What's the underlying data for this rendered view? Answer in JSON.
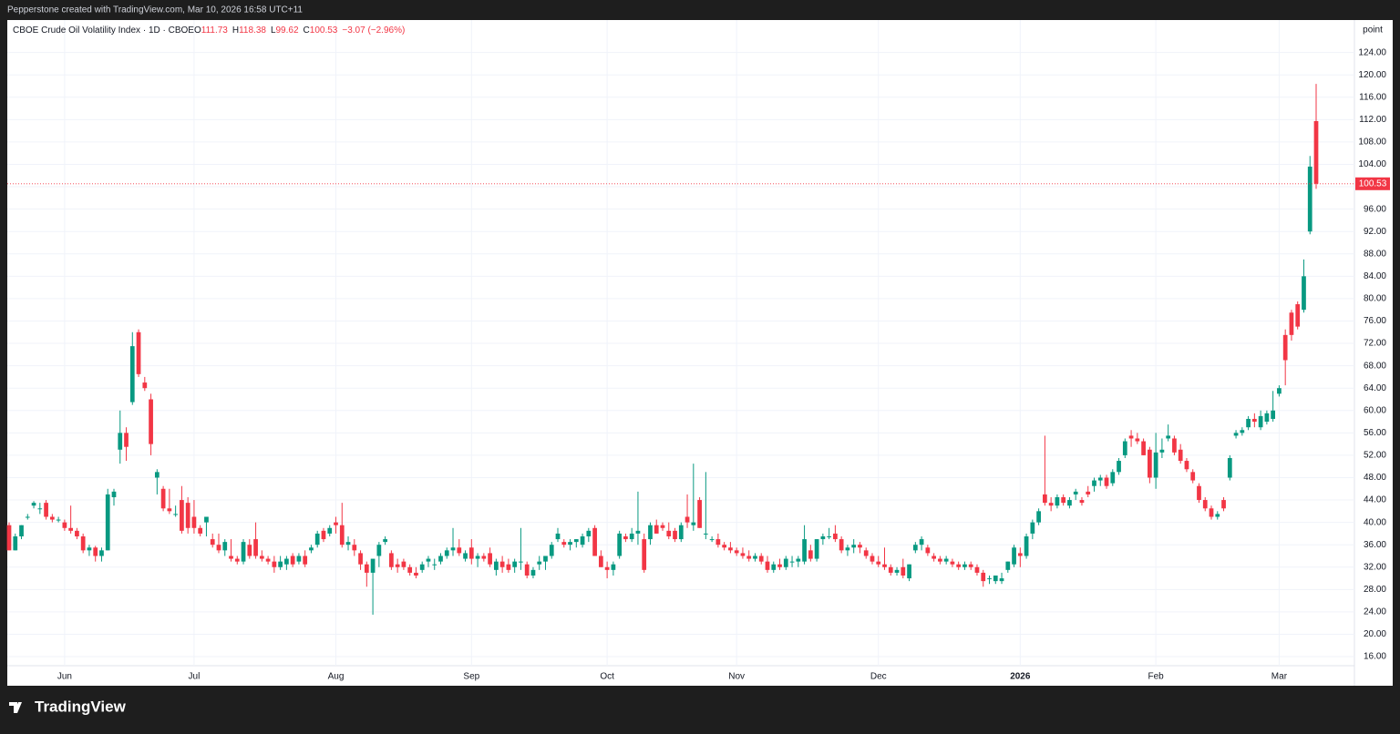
{
  "header": {
    "credit": "Pepperstone created with TradingView.com, Mar 10, 2026 16:58 UTC+11",
    "logo": "TradingView"
  },
  "chart_data": {
    "type": "candlestick",
    "title": "CBOE Crude Oil Volatility Index · 1D · CBOE",
    "ohlc_letters": [
      "O",
      "H",
      "L",
      "C"
    ],
    "change_label": "−3.07 (−2.96%)",
    "unit": "point",
    "up_color": "#089981",
    "down_color": "#f23645",
    "grid": true,
    "ylim": [
      10.8,
      129.8
    ],
    "yticks": [
      {
        "value": 16,
        "label": "16.00"
      },
      {
        "value": 20,
        "label": "20.00"
      },
      {
        "value": 24,
        "label": "24.00"
      },
      {
        "value": 28,
        "label": "28.00"
      },
      {
        "value": 32,
        "label": "32.00"
      },
      {
        "value": 36,
        "label": "36.00"
      },
      {
        "value": 40,
        "label": "40.00"
      },
      {
        "value": 44,
        "label": "44.00"
      },
      {
        "value": 48,
        "label": "48.00"
      },
      {
        "value": 52,
        "label": "52.00"
      },
      {
        "value": 56,
        "label": "56.00"
      },
      {
        "value": 60,
        "label": "60.00"
      },
      {
        "value": 64,
        "label": "64.00"
      },
      {
        "value": 68,
        "label": "68.00"
      },
      {
        "value": 72,
        "label": "72.00"
      },
      {
        "value": 76,
        "label": "76.00"
      },
      {
        "value": 80,
        "label": "80.00"
      },
      {
        "value": 84,
        "label": "84.00"
      },
      {
        "value": 88,
        "label": "88.00"
      },
      {
        "value": 92,
        "label": "92.00"
      },
      {
        "value": 96,
        "label": "96.00"
      },
      {
        "value": 100,
        "label": "100.00"
      },
      {
        "value": 104,
        "label": "104.00"
      },
      {
        "value": 108,
        "label": "108.00"
      },
      {
        "value": 112,
        "label": "112.00"
      },
      {
        "value": 116,
        "label": "116.00"
      },
      {
        "value": 120,
        "label": "120.00"
      },
      {
        "value": 124,
        "label": "124.00"
      }
    ],
    "categories": [
      null,
      null,
      null,
      null,
      null,
      null,
      null,
      null,
      null,
      "Jun",
      null,
      null,
      null,
      null,
      null,
      null,
      null,
      null,
      null,
      null,
      null,
      null,
      null,
      null,
      null,
      null,
      null,
      null,
      null,
      null,
      "Jul",
      null,
      null,
      null,
      null,
      null,
      null,
      null,
      null,
      null,
      null,
      null,
      null,
      null,
      null,
      null,
      null,
      null,
      null,
      null,
      null,
      null,
      null,
      "Aug",
      null,
      null,
      null,
      null,
      null,
      null,
      null,
      null,
      null,
      null,
      null,
      null,
      null,
      null,
      null,
      null,
      null,
      null,
      null,
      null,
      null,
      "Sep",
      null,
      null,
      null,
      null,
      null,
      null,
      null,
      null,
      null,
      null,
      null,
      null,
      null,
      null,
      null,
      null,
      null,
      null,
      null,
      null,
      null,
      "Oct",
      null,
      null,
      null,
      null,
      null,
      null,
      null,
      null,
      null,
      null,
      null,
      null,
      null,
      null,
      null,
      null,
      null,
      null,
      null,
      null,
      "Nov",
      null,
      null,
      null,
      null,
      null,
      null,
      null,
      null,
      null,
      null,
      null,
      null,
      null,
      null,
      null,
      null,
      null,
      null,
      null,
      null,
      null,
      null,
      "Dec",
      null,
      null,
      null,
      null,
      null,
      null,
      null,
      null,
      null,
      null,
      null,
      null,
      null,
      null,
      null,
      null,
      null,
      null,
      null,
      null,
      null,
      null,
      "2026",
      null,
      null,
      null,
      null,
      null,
      null,
      null,
      null,
      null,
      null,
      null,
      null,
      null,
      null,
      null,
      null,
      null,
      null,
      null,
      null,
      null,
      "Feb",
      null,
      null,
      null,
      null,
      null,
      null,
      null,
      null,
      null,
      null,
      null,
      null,
      null,
      null,
      null,
      null,
      null,
      null,
      null,
      "Mar",
      null,
      null,
      null,
      null,
      null,
      null
    ],
    "candles": [
      [
        39.5,
        40,
        35,
        35
      ],
      [
        35,
        38,
        35,
        37.5
      ],
      [
        37.5,
        39.5,
        37,
        39.5
      ],
      [
        41,
        41.5,
        40.5,
        41
      ],
      [
        43,
        43.8,
        42.5,
        43.5
      ],
      [
        42.5,
        43.5,
        41.5,
        42.5
      ],
      [
        43.5,
        44,
        40.5,
        41
      ],
      [
        41,
        41.5,
        40,
        40.5
      ],
      [
        40.5,
        41,
        40,
        40.5
      ],
      [
        40,
        40.5,
        38.5,
        39
      ],
      [
        39,
        43,
        38,
        38.5
      ],
      [
        38.5,
        39,
        37,
        37.5
      ],
      [
        37.5,
        38,
        34.5,
        35
      ],
      [
        35,
        36,
        34,
        35.5
      ],
      [
        35.5,
        35.8,
        33,
        34
      ],
      [
        34,
        35.5,
        33,
        35
      ],
      [
        35,
        46,
        35,
        45
      ],
      [
        44.5,
        46,
        43,
        45.5
      ],
      [
        53,
        60,
        50.5,
        56
      ],
      [
        56,
        57,
        51,
        53.5
      ],
      [
        61.5,
        74,
        61,
        71.5
      ],
      [
        74,
        74.5,
        66,
        66.5
      ],
      [
        65,
        66,
        63.5,
        64
      ],
      [
        62,
        63,
        52,
        54
      ],
      [
        48,
        49.5,
        45,
        49
      ],
      [
        46,
        46.5,
        42,
        42.5
      ],
      [
        42.5,
        46,
        41.5,
        42
      ],
      [
        41.5,
        43,
        41,
        41.5
      ],
      [
        44,
        46.5,
        38,
        38.5
      ],
      [
        43.5,
        44.5,
        38,
        39
      ],
      [
        41,
        44,
        38,
        39
      ],
      [
        39,
        39.5,
        37.5,
        38
      ],
      [
        40,
        41,
        37.5,
        41
      ],
      [
        37,
        38,
        35.5,
        36
      ],
      [
        36,
        38,
        34.5,
        35
      ],
      [
        35,
        37,
        34,
        36.5
      ],
      [
        34,
        37,
        33,
        33.5
      ],
      [
        33.5,
        34,
        32.5,
        33
      ],
      [
        33,
        37,
        32.5,
        36.5
      ],
      [
        36,
        37,
        33.5,
        34
      ],
      [
        37,
        40,
        33.5,
        34
      ],
      [
        34,
        35,
        33,
        33.5
      ],
      [
        33.5,
        34,
        32.5,
        33
      ],
      [
        33,
        34,
        31,
        32
      ],
      [
        32,
        34,
        31.5,
        33
      ],
      [
        32.5,
        34,
        31.5,
        33.5
      ],
      [
        34,
        34.5,
        32,
        32.5
      ],
      [
        33,
        34.5,
        32.5,
        34
      ],
      [
        34,
        35,
        32,
        32.5
      ],
      [
        35,
        36,
        34.5,
        35.5
      ],
      [
        36,
        38.5,
        35.5,
        38
      ],
      [
        38.5,
        39,
        36.5,
        37
      ],
      [
        38,
        39.5,
        37.5,
        39
      ],
      [
        40,
        41,
        38,
        39.5
      ],
      [
        39.5,
        43.5,
        35.5,
        36
      ],
      [
        36,
        37.5,
        35,
        36.5
      ],
      [
        36,
        37,
        34,
        35
      ],
      [
        34.5,
        35,
        31.5,
        32.5
      ],
      [
        32.5,
        33,
        28.5,
        31
      ],
      [
        31,
        33,
        23.5,
        33.5
      ],
      [
        34,
        36.5,
        32,
        36
      ],
      [
        36.5,
        37.5,
        36,
        37
      ],
      [
        34.5,
        35,
        31.5,
        32
      ],
      [
        32.5,
        33.5,
        31,
        32
      ],
      [
        33,
        33.5,
        31.5,
        32
      ],
      [
        32,
        32.5,
        30.5,
        31
      ],
      [
        31,
        32,
        30,
        30.5
      ],
      [
        31.5,
        33,
        31,
        32.5
      ],
      [
        33,
        34,
        32,
        33.5
      ],
      [
        32.5,
        33.5,
        31.5,
        32.5
      ],
      [
        33,
        34.5,
        32.5,
        34
      ],
      [
        34,
        35.5,
        33.5,
        35
      ],
      [
        35,
        39,
        34,
        35.5
      ],
      [
        35.5,
        37,
        34,
        34.5
      ],
      [
        33.5,
        35,
        33,
        34.5
      ],
      [
        35.5,
        37,
        32.5,
        33.5
      ],
      [
        33.5,
        34.5,
        32,
        34
      ],
      [
        34,
        34.5,
        33,
        33.5
      ],
      [
        34.5,
        35.5,
        32,
        32.5
      ],
      [
        31.5,
        33.5,
        30.5,
        33
      ],
      [
        33,
        34,
        31,
        32
      ],
      [
        32.5,
        33.5,
        31,
        31.5
      ],
      [
        32,
        33.5,
        31,
        33
      ],
      [
        33,
        39,
        31.5,
        33
      ],
      [
        32.5,
        33,
        30,
        30.5
      ],
      [
        30.5,
        32,
        30,
        31.5
      ],
      [
        32.5,
        34,
        31.5,
        33
      ],
      [
        33,
        34,
        31.5,
        34
      ],
      [
        34,
        36.5,
        33.5,
        36
      ],
      [
        37,
        39,
        36.5,
        38
      ],
      [
        36.5,
        37,
        35.5,
        36
      ],
      [
        36,
        37,
        35,
        36.5
      ],
      [
        36.5,
        37,
        35.5,
        37
      ],
      [
        36,
        38,
        35.5,
        37.5
      ],
      [
        37.5,
        39,
        36.5,
        38.5
      ],
      [
        39,
        39.5,
        34,
        34
      ],
      [
        34,
        35,
        32,
        32
      ],
      [
        32,
        33,
        30,
        31.5
      ],
      [
        31.5,
        33,
        30.5,
        32.5
      ],
      [
        34,
        38.5,
        33.5,
        38
      ],
      [
        37.5,
        38,
        36.5,
        37
      ],
      [
        37,
        39,
        36.5,
        38
      ],
      [
        38,
        45.5,
        36,
        38.5
      ],
      [
        37,
        38,
        31,
        31.5
      ],
      [
        37,
        40,
        36,
        39.5
      ],
      [
        39.5,
        40.5,
        38,
        38
      ],
      [
        39.5,
        40,
        38.5,
        39
      ],
      [
        38.5,
        40,
        37,
        37.5
      ],
      [
        38.5,
        39,
        36.5,
        37
      ],
      [
        37,
        40,
        36.5,
        39.5
      ],
      [
        41,
        45,
        39,
        40
      ],
      [
        39.5,
        50.5,
        38.5,
        40
      ],
      [
        44,
        44.5,
        39,
        39
      ],
      [
        38,
        49,
        37,
        38
      ],
      [
        37,
        37.5,
        36.5,
        37
      ],
      [
        37,
        38,
        35.5,
        36
      ],
      [
        36,
        36.5,
        35,
        35.5
      ],
      [
        35.5,
        36.5,
        34.5,
        35
      ],
      [
        35,
        35.5,
        34,
        34.5
      ],
      [
        34.5,
        35.5,
        33.5,
        34
      ],
      [
        34,
        35,
        33,
        33.5
      ],
      [
        33.5,
        34.5,
        33,
        34
      ],
      [
        34,
        34.5,
        32.5,
        33
      ],
      [
        33,
        34,
        31,
        31.5
      ],
      [
        31.5,
        33,
        31,
        32.5
      ],
      [
        32.5,
        33.5,
        31.5,
        32
      ],
      [
        32,
        34,
        31.5,
        33.5
      ],
      [
        33,
        34,
        32,
        33
      ],
      [
        33,
        34,
        32,
        33.5
      ],
      [
        33,
        39.5,
        32.5,
        37
      ],
      [
        35,
        36,
        33,
        33.5
      ],
      [
        33.5,
        37,
        33,
        37
      ],
      [
        37,
        38,
        36,
        37.5
      ],
      [
        37.5,
        39,
        37,
        37.5
      ],
      [
        38,
        39.5,
        36.5,
        37
      ],
      [
        37,
        37.5,
        34.5,
        35
      ],
      [
        35,
        36,
        34,
        35.5
      ],
      [
        35.5,
        37,
        34.5,
        36
      ],
      [
        36,
        36.5,
        34.5,
        35.5
      ],
      [
        35,
        35.5,
        33.5,
        34
      ],
      [
        34,
        34.5,
        32.5,
        33
      ],
      [
        33,
        34,
        32,
        32.5
      ],
      [
        32.5,
        35.5,
        31.5,
        32
      ],
      [
        32,
        32.5,
        30.5,
        31
      ],
      [
        31,
        32,
        30.5,
        31.5
      ],
      [
        32,
        33.5,
        30,
        30.5
      ],
      [
        30,
        32.5,
        29.5,
        32.5
      ],
      [
        35,
        36.5,
        34.5,
        36
      ],
      [
        36,
        37.5,
        35,
        37
      ],
      [
        35.5,
        36,
        34,
        34.5
      ],
      [
        34,
        34.5,
        33,
        33.5
      ],
      [
        33.5,
        34,
        32.5,
        33
      ],
      [
        33,
        34,
        32.5,
        33.5
      ],
      [
        33,
        33.5,
        32,
        32.5
      ],
      [
        32.5,
        33,
        31.5,
        32
      ],
      [
        32,
        33,
        31.5,
        32.5
      ],
      [
        32.5,
        33,
        31.5,
        32
      ],
      [
        32,
        32.5,
        30.5,
        31
      ],
      [
        31,
        31.5,
        28.5,
        29.5
      ],
      [
        30,
        30.5,
        29,
        30
      ],
      [
        29.5,
        30.5,
        29,
        30.5
      ],
      [
        29.5,
        31,
        29,
        30
      ],
      [
        31.5,
        33,
        31,
        33
      ],
      [
        32.5,
        36,
        32,
        35.5
      ],
      [
        34.5,
        35.5,
        32,
        34
      ],
      [
        34,
        38,
        33.5,
        37.5
      ],
      [
        38,
        40.5,
        37,
        40
      ],
      [
        40,
        42.5,
        39.5,
        42
      ],
      [
        45,
        55.5,
        43,
        43.5
      ],
      [
        43.5,
        44.5,
        42,
        43
      ],
      [
        43,
        45,
        42.5,
        44.5
      ],
      [
        44.5,
        45,
        43,
        43.5
      ],
      [
        43,
        44.5,
        42.5,
        44
      ],
      [
        45,
        46,
        44,
        45.5
      ],
      [
        44,
        44.5,
        43,
        43.5
      ],
      [
        45.5,
        46.5,
        44.5,
        45
      ],
      [
        46.5,
        48,
        45.5,
        47.5
      ],
      [
        47.5,
        48.5,
        46.5,
        48
      ],
      [
        48,
        48.5,
        46,
        46.5
      ],
      [
        47,
        49.5,
        46.5,
        49
      ],
      [
        49,
        51.5,
        48.5,
        51
      ],
      [
        52,
        55,
        51.5,
        54.5
      ],
      [
        55.5,
        56.5,
        53.5,
        55
      ],
      [
        55,
        56,
        54,
        54.5
      ],
      [
        54.5,
        55,
        52,
        52
      ],
      [
        53,
        53.5,
        47,
        48
      ],
      [
        48,
        56,
        46,
        52.5
      ],
      [
        52.5,
        55,
        51.5,
        53
      ],
      [
        55,
        57.5,
        54.5,
        55.5
      ],
      [
        55,
        55.5,
        52,
        52.5
      ],
      [
        53,
        54,
        50.5,
        51
      ],
      [
        51,
        51.5,
        49,
        49.5
      ],
      [
        49,
        49.5,
        47,
        47.5
      ],
      [
        46.5,
        47,
        43.5,
        44
      ],
      [
        44,
        44.5,
        42,
        42.5
      ],
      [
        42.5,
        43,
        40.5,
        41
      ],
      [
        41,
        42,
        40.5,
        41.5
      ],
      [
        44,
        44.5,
        42,
        42.5
      ],
      [
        48,
        52,
        47.5,
        51.5
      ],
      [
        55.5,
        56.5,
        55,
        56
      ],
      [
        56,
        57,
        55.5,
        56.5
      ],
      [
        57,
        59,
        56.5,
        58.5
      ],
      [
        58.5,
        59.5,
        57,
        58
      ],
      [
        57,
        60,
        56.5,
        59
      ],
      [
        58,
        60,
        57.5,
        59.5
      ],
      [
        58.5,
        63.5,
        58,
        60
      ],
      [
        63,
        64.5,
        62.5,
        64
      ],
      [
        73.5,
        74.5,
        64.5,
        69
      ],
      [
        77.5,
        78,
        72.5,
        73.5
      ],
      [
        79,
        79.5,
        74.5,
        75
      ],
      [
        78,
        87,
        77.5,
        84
      ],
      [
        92,
        105.5,
        91.5,
        103.6
      ],
      [
        111.73,
        118.38,
        99.62,
        100.53
      ]
    ]
  }
}
